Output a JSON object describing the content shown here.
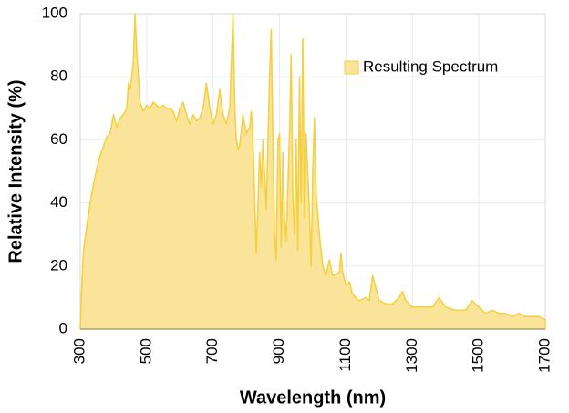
{
  "chart_data": {
    "type": "area",
    "x_label": "Wavelength (nm)",
    "y_label": "Relative Intensity (%)",
    "x": [
      300,
      305,
      310,
      320,
      330,
      340,
      350,
      360,
      370,
      380,
      390,
      400,
      410,
      420,
      430,
      440,
      445,
      450,
      455,
      460,
      465,
      470,
      475,
      480,
      490,
      500,
      510,
      520,
      530,
      540,
      550,
      560,
      570,
      580,
      590,
      600,
      610,
      620,
      630,
      640,
      650,
      660,
      670,
      680,
      690,
      700,
      710,
      720,
      730,
      740,
      750,
      760,
      765,
      770,
      775,
      780,
      790,
      800,
      810,
      815,
      820,
      830,
      840,
      845,
      850,
      860,
      870,
      875,
      880,
      885,
      890,
      895,
      900,
      905,
      910,
      915,
      920,
      930,
      935,
      940,
      945,
      950,
      955,
      960,
      965,
      970,
      975,
      980,
      990,
      995,
      1000,
      1005,
      1010,
      1020,
      1030,
      1040,
      1050,
      1060,
      1080,
      1085,
      1090,
      1100,
      1110,
      1120,
      1140,
      1160,
      1170,
      1180,
      1190,
      1200,
      1220,
      1240,
      1260,
      1270,
      1280,
      1300,
      1330,
      1360,
      1380,
      1400,
      1430,
      1460,
      1480,
      1500,
      1520,
      1540,
      1560,
      1580,
      1600,
      1620,
      1640,
      1660,
      1680,
      1700
    ],
    "series": [
      {
        "name": "Resulting Spectrum",
        "color": "#f9e49a",
        "line_color": "#f5cf3c",
        "values": [
          0,
          15,
          25,
          33,
          40,
          46,
          51,
          55,
          58,
          61,
          62,
          68,
          64,
          67,
          68,
          70,
          78,
          76,
          80,
          85,
          100,
          88,
          80,
          72,
          69,
          71,
          70,
          72,
          71,
          70,
          71,
          70,
          70,
          69,
          66,
          70,
          72,
          68,
          65,
          68,
          66,
          67,
          70,
          78,
          70,
          65,
          68,
          76,
          68,
          65,
          70,
          100,
          72,
          60,
          57,
          58,
          68,
          62,
          64,
          69,
          60,
          24,
          56,
          45,
          60,
          38,
          80,
          95,
          60,
          30,
          22,
          60,
          62,
          26,
          56,
          35,
          28,
          62,
          87,
          42,
          30,
          60,
          25,
          80,
          40,
          92,
          35,
          62,
          37,
          20,
          50,
          67,
          43,
          30,
          20,
          17,
          22,
          17,
          18,
          24,
          18,
          14,
          15,
          11,
          9,
          10,
          9,
          17,
          13,
          9,
          8,
          8,
          10,
          12,
          9,
          7,
          7,
          7,
          10,
          7,
          6,
          6,
          9,
          7,
          5,
          6,
          5,
          5,
          4,
          5,
          4,
          4,
          4,
          3
        ]
      }
    ],
    "xlim": [
      300,
      1700
    ],
    "ylim": [
      0,
      100
    ],
    "xticks": [
      300,
      500,
      700,
      900,
      1100,
      1300,
      1500,
      1700
    ],
    "yticks": [
      0,
      20,
      40,
      60,
      80,
      100
    ],
    "grid": true,
    "legend": "upper right"
  }
}
